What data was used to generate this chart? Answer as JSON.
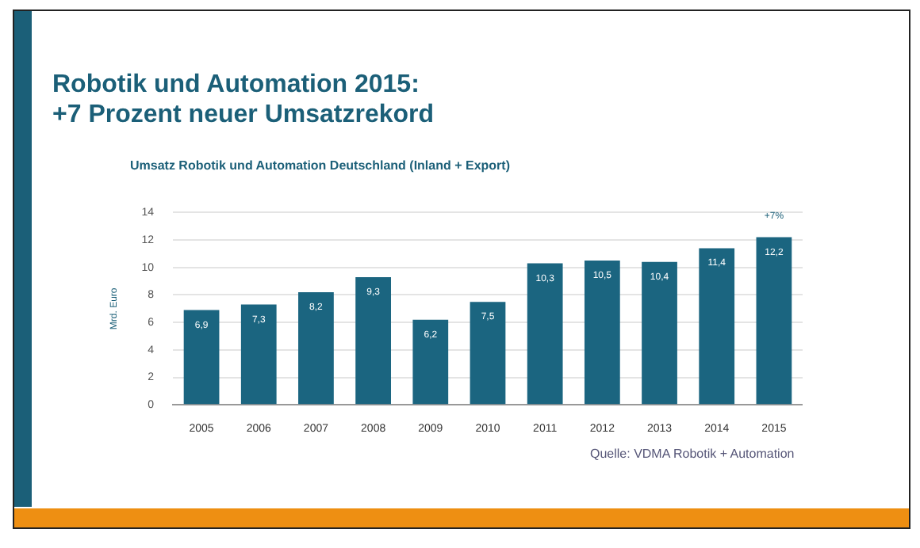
{
  "chart_data": {
    "type": "bar",
    "title": "Robotik und Automation 2015:\n+7 Prozent neuer Umsatzrekord",
    "subtitle": "Umsatz Robotik und Automation Deutschland (Inland + Export)",
    "ylabel": "Mrd. Euro",
    "categories": [
      "2005",
      "2006",
      "2007",
      "2008",
      "2009",
      "2010",
      "2011",
      "2012",
      "2013",
      "2014",
      "2015"
    ],
    "values": [
      6.9,
      7.3,
      8.2,
      9.3,
      6.2,
      7.5,
      10.3,
      10.5,
      10.4,
      11.4,
      12.2
    ],
    "value_labels": [
      "6,9",
      "7,3",
      "8,2",
      "9,3",
      "6,2",
      "7,5",
      "10,3",
      "10,5",
      "10,4",
      "11,4",
      "12,2"
    ],
    "color": "#1b6580",
    "ylim": [
      0,
      14
    ],
    "yticks": [
      0,
      2,
      4,
      6,
      8,
      10,
      12,
      14
    ],
    "grid": "y",
    "annotations": [
      {
        "text": "+7%",
        "x": "2015",
        "y": 12.2
      },
      "Quelle: VDMA Robotik + Automation"
    ]
  }
}
